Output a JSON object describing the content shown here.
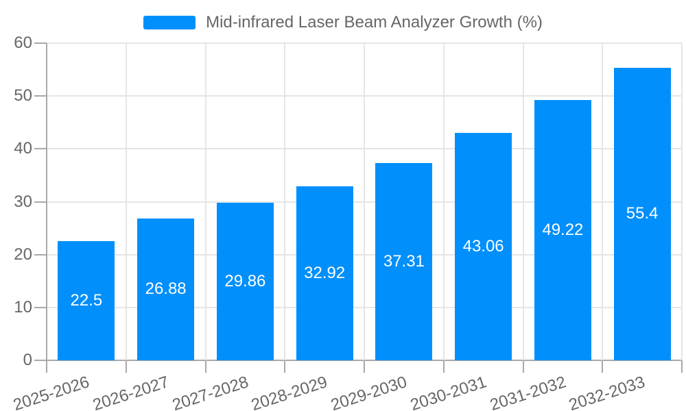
{
  "chart_data": {
    "type": "bar",
    "legend": "Mid-infrared Laser Beam Analyzer Growth (%)",
    "legend_position": "top-center",
    "categories": [
      "2025-2026",
      "2026-2027",
      "2027-2028",
      "2028-2029",
      "2029-2030",
      "2030-2031",
      "2031-2032",
      "2032-2033"
    ],
    "values": [
      22.5,
      26.88,
      29.86,
      32.92,
      37.31,
      43.06,
      49.22,
      55.4
    ],
    "value_labels": [
      "22.5",
      "26.88",
      "29.86",
      "32.92",
      "37.31",
      "43.06",
      "49.22",
      "55.4"
    ],
    "ylim": [
      0,
      60
    ],
    "yticks": [
      0,
      10,
      20,
      30,
      40,
      50,
      60
    ],
    "grid": "both",
    "x_label_rotation_deg": -18,
    "colors": {
      "bar": "#008FFB",
      "value_label": "#ffffff",
      "axis_text": "#666666",
      "gridline": "#e5e5e5",
      "axis_line": "#a8a8a8"
    }
  }
}
